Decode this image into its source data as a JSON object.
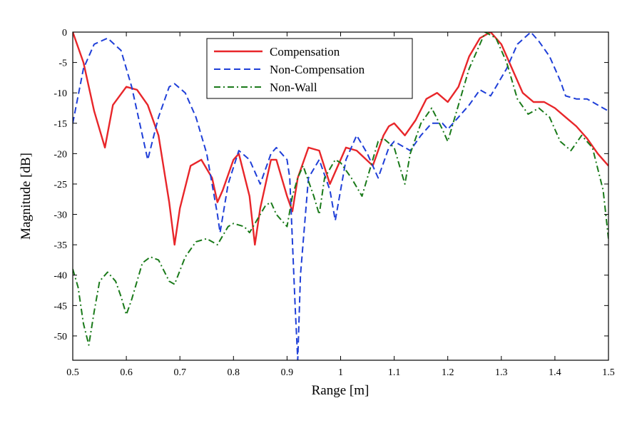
{
  "chart_data": {
    "type": "line",
    "title": "",
    "xlabel": "Range [m]",
    "ylabel": "Magnitude [dB]",
    "xlim": [
      0.5,
      1.5
    ],
    "ylim": [
      -54,
      0
    ],
    "xticks": [
      0.5,
      0.6,
      0.7,
      0.8,
      0.9,
      1,
      1.1,
      1.2,
      1.3,
      1.4,
      1.5
    ],
    "xtick_labels": [
      "0.5",
      "0.6",
      "0.7",
      "0.8",
      "0.9",
      "1",
      "1.1",
      "1.2",
      "1.3",
      "1.4",
      "1.5"
    ],
    "yticks": [
      0,
      -5,
      -10,
      -15,
      -20,
      -25,
      -30,
      -35,
      -40,
      -45,
      -50
    ],
    "ytick_labels": [
      "0",
      "-5",
      "-10",
      "-15",
      "-20",
      "-25",
      "-30",
      "-35",
      "-40",
      "-45",
      "-50"
    ],
    "grid": false,
    "legend_position": "top-center",
    "series": [
      {
        "name": "Compensation",
        "color": "#e8262a",
        "style": "solid",
        "points": [
          [
            0.5,
            0
          ],
          [
            0.52,
            -5
          ],
          [
            0.54,
            -13
          ],
          [
            0.56,
            -19
          ],
          [
            0.575,
            -12
          ],
          [
            0.6,
            -9
          ],
          [
            0.62,
            -9.5
          ],
          [
            0.64,
            -12
          ],
          [
            0.66,
            -17
          ],
          [
            0.68,
            -28
          ],
          [
            0.69,
            -35
          ],
          [
            0.7,
            -29
          ],
          [
            0.72,
            -22
          ],
          [
            0.74,
            -21
          ],
          [
            0.76,
            -24
          ],
          [
            0.77,
            -28
          ],
          [
            0.78,
            -26
          ],
          [
            0.8,
            -21
          ],
          [
            0.81,
            -20
          ],
          [
            0.83,
            -27
          ],
          [
            0.84,
            -35
          ],
          [
            0.85,
            -29
          ],
          [
            0.87,
            -21
          ],
          [
            0.88,
            -21
          ],
          [
            0.9,
            -27
          ],
          [
            0.91,
            -29.5
          ],
          [
            0.92,
            -24
          ],
          [
            0.94,
            -19
          ],
          [
            0.96,
            -19.5
          ],
          [
            0.98,
            -25
          ],
          [
            0.99,
            -23
          ],
          [
            1.01,
            -19
          ],
          [
            1.03,
            -19.5
          ],
          [
            1.06,
            -22
          ],
          [
            1.08,
            -17
          ],
          [
            1.09,
            -15.5
          ],
          [
            1.1,
            -15
          ],
          [
            1.12,
            -17
          ],
          [
            1.14,
            -14.5
          ],
          [
            1.16,
            -11
          ],
          [
            1.18,
            -10
          ],
          [
            1.2,
            -11.5
          ],
          [
            1.22,
            -9
          ],
          [
            1.24,
            -4
          ],
          [
            1.26,
            -1
          ],
          [
            1.28,
            0
          ],
          [
            1.3,
            -2
          ],
          [
            1.32,
            -6
          ],
          [
            1.34,
            -10
          ],
          [
            1.36,
            -11.5
          ],
          [
            1.38,
            -11.5
          ],
          [
            1.4,
            -12.5
          ],
          [
            1.42,
            -14
          ],
          [
            1.44,
            -15.5
          ],
          [
            1.46,
            -17.5
          ],
          [
            1.48,
            -20
          ],
          [
            1.5,
            -22
          ]
        ]
      },
      {
        "name": "Non-Compensation",
        "color": "#1f3fd8",
        "style": "dashed",
        "points": [
          [
            0.5,
            -15
          ],
          [
            0.52,
            -6
          ],
          [
            0.54,
            -2
          ],
          [
            0.565,
            -1
          ],
          [
            0.59,
            -3
          ],
          [
            0.61,
            -9
          ],
          [
            0.63,
            -17
          ],
          [
            0.64,
            -21
          ],
          [
            0.66,
            -14
          ],
          [
            0.68,
            -9
          ],
          [
            0.69,
            -8.5
          ],
          [
            0.71,
            -10
          ],
          [
            0.73,
            -14
          ],
          [
            0.75,
            -20
          ],
          [
            0.77,
            -30
          ],
          [
            0.775,
            -33
          ],
          [
            0.79,
            -25
          ],
          [
            0.81,
            -19.5
          ],
          [
            0.83,
            -21
          ],
          [
            0.85,
            -25
          ],
          [
            0.87,
            -20
          ],
          [
            0.88,
            -19
          ],
          [
            0.9,
            -21
          ],
          [
            0.905,
            -24
          ],
          [
            0.915,
            -45
          ],
          [
            0.92,
            -54
          ],
          [
            0.925,
            -40
          ],
          [
            0.94,
            -24
          ],
          [
            0.96,
            -21
          ],
          [
            0.98,
            -26
          ],
          [
            0.99,
            -31
          ],
          [
            1.01,
            -21
          ],
          [
            1.03,
            -17
          ],
          [
            1.05,
            -20
          ],
          [
            1.07,
            -24
          ],
          [
            1.09,
            -19
          ],
          [
            1.1,
            -18
          ],
          [
            1.13,
            -19.5
          ],
          [
            1.15,
            -17
          ],
          [
            1.17,
            -15
          ],
          [
            1.19,
            -15
          ],
          [
            1.2,
            -16
          ],
          [
            1.22,
            -14
          ],
          [
            1.24,
            -12
          ],
          [
            1.26,
            -9.5
          ],
          [
            1.28,
            -10.5
          ],
          [
            1.29,
            -9
          ],
          [
            1.31,
            -6
          ],
          [
            1.33,
            -2
          ],
          [
            1.355,
            0
          ],
          [
            1.37,
            -1.5
          ],
          [
            1.39,
            -4
          ],
          [
            1.41,
            -8
          ],
          [
            1.42,
            -10.5
          ],
          [
            1.44,
            -11
          ],
          [
            1.46,
            -11
          ],
          [
            1.48,
            -12
          ],
          [
            1.5,
            -13
          ]
        ]
      },
      {
        "name": "Non-Wall",
        "color": "#1a7a1a",
        "style": "dashdot",
        "points": [
          [
            0.5,
            -39
          ],
          [
            0.51,
            -42
          ],
          [
            0.52,
            -48
          ],
          [
            0.53,
            -51.5
          ],
          [
            0.54,
            -46
          ],
          [
            0.55,
            -41
          ],
          [
            0.565,
            -39.5
          ],
          [
            0.58,
            -41
          ],
          [
            0.59,
            -43.5
          ],
          [
            0.6,
            -46.5
          ],
          [
            0.61,
            -44
          ],
          [
            0.63,
            -38
          ],
          [
            0.645,
            -37
          ],
          [
            0.66,
            -37.5
          ],
          [
            0.68,
            -41
          ],
          [
            0.69,
            -41.5
          ],
          [
            0.71,
            -37
          ],
          [
            0.73,
            -34.5
          ],
          [
            0.75,
            -34
          ],
          [
            0.77,
            -35
          ],
          [
            0.79,
            -32
          ],
          [
            0.8,
            -31.5
          ],
          [
            0.82,
            -32
          ],
          [
            0.83,
            -33
          ],
          [
            0.86,
            -28.5
          ],
          [
            0.87,
            -28
          ],
          [
            0.88,
            -30
          ],
          [
            0.9,
            -32
          ],
          [
            0.91,
            -27
          ],
          [
            0.92,
            -24
          ],
          [
            0.93,
            -22
          ],
          [
            0.95,
            -27
          ],
          [
            0.96,
            -30
          ],
          [
            0.97,
            -24
          ],
          [
            0.99,
            -21
          ],
          [
            1,
            -21.5
          ],
          [
            1.02,
            -24
          ],
          [
            1.04,
            -27
          ],
          [
            1.05,
            -24
          ],
          [
            1.07,
            -18
          ],
          [
            1.08,
            -17.5
          ],
          [
            1.1,
            -19
          ],
          [
            1.12,
            -25
          ],
          [
            1.13,
            -20
          ],
          [
            1.15,
            -15
          ],
          [
            1.17,
            -12.5
          ],
          [
            1.19,
            -16
          ],
          [
            1.2,
            -18
          ],
          [
            1.22,
            -12
          ],
          [
            1.24,
            -6
          ],
          [
            1.27,
            0
          ],
          [
            1.29,
            -1
          ],
          [
            1.31,
            -5
          ],
          [
            1.33,
            -11
          ],
          [
            1.35,
            -13.5
          ],
          [
            1.37,
            -12.5
          ],
          [
            1.39,
            -14
          ],
          [
            1.41,
            -18
          ],
          [
            1.43,
            -19.5
          ],
          [
            1.45,
            -17
          ],
          [
            1.47,
            -19
          ],
          [
            1.49,
            -26
          ],
          [
            1.5,
            -34
          ]
        ]
      }
    ]
  }
}
